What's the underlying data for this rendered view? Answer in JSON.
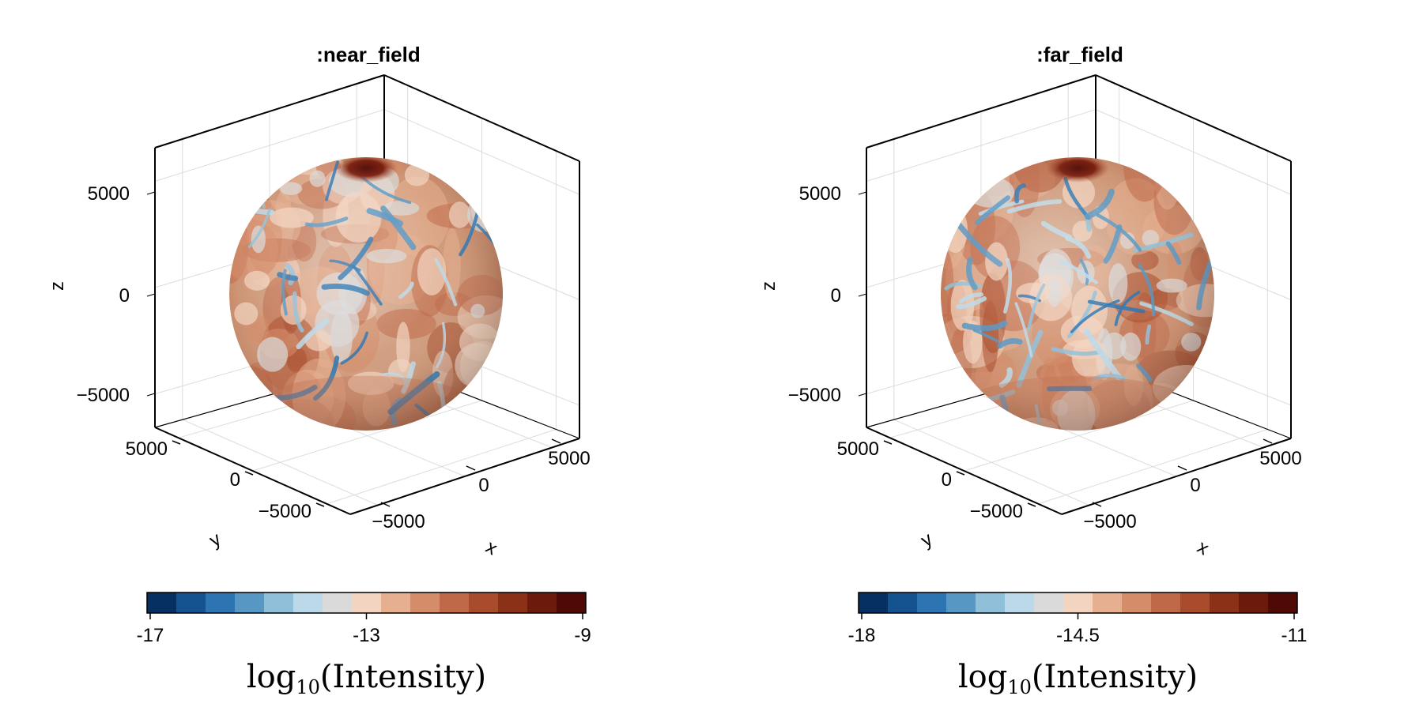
{
  "chart_data": [
    {
      "type": "heatmap",
      "title": ":near_field",
      "xlabel": "x",
      "ylabel": "y",
      "zlabel": "z",
      "x_ticks": [
        "−5000",
        "0",
        "5000"
      ],
      "y_ticks": [
        "−5000",
        "0",
        "5000"
      ],
      "z_ticks": [
        "−5000",
        "0",
        "5000"
      ],
      "axis_range": [
        -7000,
        7000
      ],
      "grid": true,
      "surface": "sphere",
      "sphere_radius": 6371,
      "colorbar": {
        "label_base": "log",
        "label_sub": "10",
        "label_rest": "(Intensity)",
        "ticks": [
          "-17",
          "-13",
          "-9"
        ],
        "range": [
          -17,
          -9
        ],
        "levels": 15,
        "colormap": [
          "#053061",
          "#14538f",
          "#2d75b2",
          "#5797c3",
          "#90bfd9",
          "#bcd9e9",
          "#dadada",
          "#f2d4c0",
          "#e5af90",
          "#d58d69",
          "#c06948",
          "#a94c2c",
          "#8b3117",
          "#6c1a0b",
          "#4f0a06"
        ]
      }
    },
    {
      "type": "heatmap",
      "title": ":far_field",
      "xlabel": "x",
      "ylabel": "y",
      "zlabel": "z",
      "x_ticks": [
        "−5000",
        "0",
        "5000"
      ],
      "y_ticks": [
        "−5000",
        "0",
        "5000"
      ],
      "z_ticks": [
        "−5000",
        "0",
        "5000"
      ],
      "axis_range": [
        -7000,
        7000
      ],
      "grid": true,
      "surface": "sphere",
      "sphere_radius": 6371,
      "colorbar": {
        "label_base": "log",
        "label_sub": "10",
        "label_rest": "(Intensity)",
        "ticks": [
          "-18",
          "-14.5",
          "-11"
        ],
        "range": [
          -18,
          -11
        ],
        "levels": 15,
        "colormap": [
          "#053061",
          "#14538f",
          "#2d75b2",
          "#5797c3",
          "#90bfd9",
          "#bcd9e9",
          "#dadada",
          "#f2d4c0",
          "#e5af90",
          "#d58d69",
          "#c06948",
          "#a94c2c",
          "#8b3117",
          "#6c1a0b",
          "#4f0a06"
        ]
      }
    }
  ]
}
